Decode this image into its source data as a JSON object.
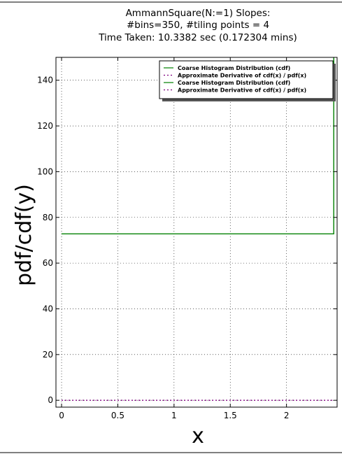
{
  "chart_data": {
    "type": "line",
    "title_lines": [
      "AmmannSquare(N:=1) Slopes:",
      "#bins=350, #tiling points = 4",
      "Time Taken: 10.3382 sec (0.172304 mins)"
    ],
    "xlabel": "x",
    "ylabel": "pdf/cdf(y)",
    "xlim": [
      -0.05,
      2.45
    ],
    "ylim": [
      -3,
      150
    ],
    "xticks": [
      0,
      0.5,
      1,
      1.5,
      2
    ],
    "xtick_labels": [
      "0",
      "0.5",
      "1",
      "1.5",
      "2"
    ],
    "yticks": [
      0,
      20,
      40,
      60,
      80,
      100,
      120,
      140
    ],
    "ytick_labels": [
      "0",
      "20",
      "40",
      "60",
      "80",
      "100",
      "120",
      "140"
    ],
    "grid": true,
    "legend_position": "top-right",
    "series": [
      {
        "name": "Coarse Histogram Distribution (cdf)",
        "color": "#008000",
        "style": "solid",
        "x": [
          0,
          2.42,
          2.42
        ],
        "y": [
          72.8,
          72.8,
          150
        ]
      },
      {
        "name": "Approximate Derivative of cdf(x) / pdf(x)",
        "color": "#800080",
        "style": "dotted",
        "x": [
          0,
          2.42
        ],
        "y": [
          0,
          0
        ]
      },
      {
        "name": "Coarse Histogram Distribution (cdf)",
        "color": "#008000",
        "style": "solid",
        "x": [
          0,
          2.42,
          2.42
        ],
        "y": [
          72.8,
          72.8,
          150
        ]
      },
      {
        "name": "Approximate Derivative of cdf(x) / pdf(x)",
        "color": "#800080",
        "style": "dotted",
        "x": [
          0,
          2.42
        ],
        "y": [
          0,
          0
        ]
      }
    ]
  }
}
